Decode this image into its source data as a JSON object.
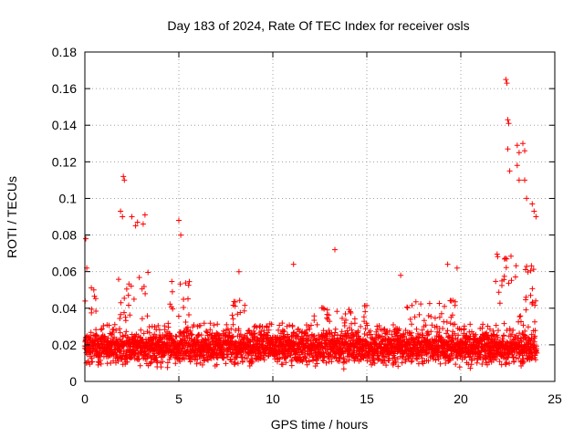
{
  "chart_data": {
    "type": "scatter",
    "title": "Day 183 of 2024, Rate Of TEC Index for receiver osls",
    "xlabel": "GPS time / hours",
    "ylabel": "ROTI / TECUs",
    "xlim": [
      0,
      25
    ],
    "ylim": [
      0,
      0.18
    ],
    "xticks": [
      "0",
      "5",
      "10",
      "15",
      "20",
      "25"
    ],
    "yticks": [
      "0",
      "0.02",
      "0.04",
      "0.06",
      "0.08",
      "0.1",
      "0.12",
      "0.14",
      "0.16",
      "0.18"
    ],
    "marker": "+",
    "grid": true,
    "series": [
      {
        "name": "ROTI",
        "color": "#ff0000",
        "notable_points": [
          {
            "x": 0.05,
            "y": 0.078
          },
          {
            "x": 0.1,
            "y": 0.062
          },
          {
            "x": 1.9,
            "y": 0.093
          },
          {
            "x": 2.0,
            "y": 0.09
          },
          {
            "x": 2.05,
            "y": 0.112
          },
          {
            "x": 2.1,
            "y": 0.11
          },
          {
            "x": 2.5,
            "y": 0.09
          },
          {
            "x": 2.7,
            "y": 0.085
          },
          {
            "x": 2.8,
            "y": 0.087
          },
          {
            "x": 3.1,
            "y": 0.086
          },
          {
            "x": 3.2,
            "y": 0.091
          },
          {
            "x": 5.0,
            "y": 0.088
          },
          {
            "x": 5.1,
            "y": 0.08
          },
          {
            "x": 8.2,
            "y": 0.06
          },
          {
            "x": 11.1,
            "y": 0.064
          },
          {
            "x": 13.3,
            "y": 0.072
          },
          {
            "x": 16.8,
            "y": 0.058
          },
          {
            "x": 19.3,
            "y": 0.064
          },
          {
            "x": 19.8,
            "y": 0.062
          },
          {
            "x": 22.4,
            "y": 0.165
          },
          {
            "x": 22.45,
            "y": 0.163
          },
          {
            "x": 22.5,
            "y": 0.143
          },
          {
            "x": 22.55,
            "y": 0.141
          },
          {
            "x": 22.5,
            "y": 0.127
          },
          {
            "x": 22.6,
            "y": 0.115
          },
          {
            "x": 23.0,
            "y": 0.129
          },
          {
            "x": 23.1,
            "y": 0.125
          },
          {
            "x": 23.3,
            "y": 0.13
          },
          {
            "x": 23.4,
            "y": 0.126
          },
          {
            "x": 23.0,
            "y": 0.118
          },
          {
            "x": 23.1,
            "y": 0.11
          },
          {
            "x": 23.4,
            "y": 0.11
          },
          {
            "x": 23.5,
            "y": 0.1
          },
          {
            "x": 23.8,
            "y": 0.097
          },
          {
            "x": 23.9,
            "y": 0.093
          },
          {
            "x": 24.0,
            "y": 0.09
          }
        ]
      }
    ]
  }
}
